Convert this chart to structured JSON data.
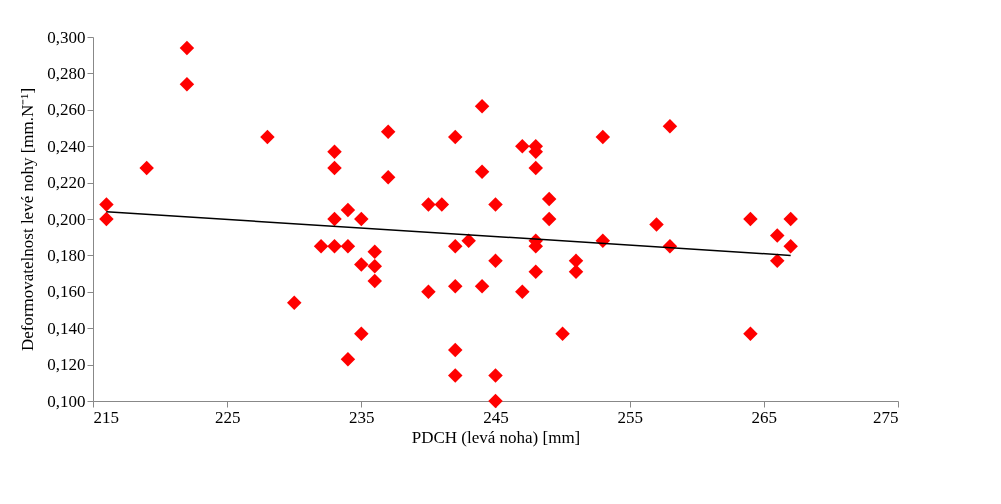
{
  "chart_data": {
    "type": "scatter",
    "xlabel": "PDCH (levá noha) [mm]",
    "ylabel": "Deformovatelnost levé nohy [mm.N⁻¹]",
    "marker": "diamond",
    "grid": false,
    "xlim": [
      215,
      275
    ],
    "xticks": [
      215,
      225,
      235,
      245,
      255,
      265,
      275
    ],
    "ylim": [
      0.1,
      0.3
    ],
    "yticks": [
      {
        "value": 0.1,
        "label": "0,100"
      },
      {
        "value": 0.12,
        "label": "0,120"
      },
      {
        "value": 0.14,
        "label": "0,140"
      },
      {
        "value": 0.16,
        "label": "0,160"
      },
      {
        "value": 0.18,
        "label": "0,180"
      },
      {
        "value": 0.2,
        "label": "0,200"
      },
      {
        "value": 0.22,
        "label": "0,220"
      },
      {
        "value": 0.24,
        "label": "0,240"
      },
      {
        "value": 0.26,
        "label": "0,260"
      },
      {
        "value": 0.28,
        "label": "0,280"
      },
      {
        "value": 0.3,
        "label": "0,300"
      }
    ],
    "series": [
      {
        "color": "#ff0000",
        "x": [
          216,
          216,
          219,
          222,
          222,
          228,
          230,
          232,
          233,
          233,
          233,
          233,
          234,
          234,
          234,
          235,
          235,
          235,
          236,
          236,
          236,
          237,
          237,
          240,
          240,
          241,
          242,
          242,
          242,
          242,
          242,
          243,
          244,
          244,
          244,
          245,
          245,
          245,
          245,
          247,
          247,
          248,
          248,
          248,
          248,
          248,
          248,
          249,
          249,
          250,
          251,
          251,
          253,
          253,
          257,
          258,
          258,
          264,
          264,
          266,
          266,
          267,
          267
        ],
        "values": [
          0.208,
          0.2,
          0.228,
          0.294,
          0.274,
          0.245,
          0.154,
          0.185,
          0.237,
          0.228,
          0.2,
          0.185,
          0.205,
          0.185,
          0.123,
          0.2,
          0.175,
          0.137,
          0.182,
          0.174,
          0.166,
          0.248,
          0.223,
          0.208,
          0.16,
          0.208,
          0.245,
          0.185,
          0.163,
          0.128,
          0.114,
          0.188,
          0.262,
          0.226,
          0.163,
          0.208,
          0.177,
          0.114,
          0.1,
          0.24,
          0.16,
          0.24,
          0.237,
          0.228,
          0.188,
          0.185,
          0.171,
          0.211,
          0.2,
          0.137,
          0.177,
          0.171,
          0.245,
          0.188,
          0.197,
          0.251,
          0.185,
          0.2,
          0.137,
          0.191,
          0.177,
          0.2,
          0.185
        ]
      },
      {
        "type": "line",
        "marker": "none",
        "color": "#000000",
        "x": [
          216,
          267
        ],
        "values": [
          0.204,
          0.18
        ]
      }
    ]
  }
}
